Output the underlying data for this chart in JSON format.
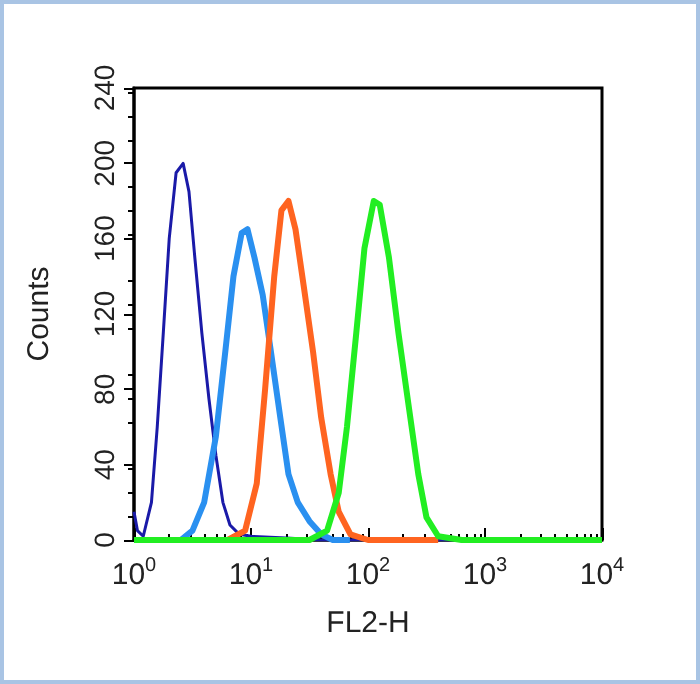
{
  "chart_data": {
    "type": "line",
    "xlabel": "FL2-H",
    "ylabel": "Counts",
    "log": "x",
    "grid": false,
    "marker": "none",
    "line_style": "solid",
    "xlim": [
      1,
      10000
    ],
    "xticks": [
      {
        "value": 1,
        "label": "10$^{0}$"
      },
      {
        "value": 10,
        "label": "10$^{1}$"
      },
      {
        "value": 100,
        "label": "10$^{2}$"
      },
      {
        "value": 1000,
        "label": "10$^{3}$"
      },
      {
        "value": 10000,
        "label": "10$^{4}$"
      }
    ],
    "ylim": [
      0,
      240
    ],
    "yticks": [
      0,
      40,
      80,
      120,
      160,
      200,
      240
    ],
    "series": [
      {
        "color": "#1a1aa8",
        "x": [
          1,
          1.07,
          1.2,
          1.41,
          1.58,
          1.78,
          2.0,
          2.29,
          2.63,
          2.95,
          3.31,
          3.8,
          4.37,
          5.01,
          5.75,
          6.61,
          7.94,
          10,
          20,
          40,
          10000
        ],
        "values": [
          15,
          5,
          2,
          20,
          60,
          110,
          160,
          195,
          200,
          185,
          150,
          110,
          75,
          45,
          20,
          8,
          3,
          2,
          1,
          0,
          0
        ]
      },
      {
        "color": "#2a90f0",
        "x": [
          1.8,
          2.51,
          3.16,
          3.98,
          5.01,
          6.03,
          7.08,
          8.32,
          9.33,
          10.7,
          12.6,
          14.8,
          17.8,
          20.9,
          25.1,
          31.6,
          39.8,
          50.1,
          70
        ],
        "values": [
          0,
          0,
          5,
          20,
          55,
          100,
          140,
          163,
          165,
          150,
          130,
          100,
          65,
          35,
          20,
          10,
          3,
          0,
          0
        ]
      },
      {
        "color": "#ff6420",
        "x": [
          3,
          6.31,
          8.91,
          11.2,
          13.2,
          15.8,
          18.2,
          20.9,
          24,
          28.2,
          33.9,
          39.8,
          47.9,
          56.2,
          70.8,
          100,
          398
        ],
        "values": [
          0,
          0,
          5,
          30,
          80,
          140,
          175,
          180,
          165,
          135,
          100,
          65,
          35,
          15,
          3,
          0,
          0
        ]
      },
      {
        "color": "#22ee22",
        "x": [
          1,
          31.6,
          44.7,
          56.2,
          66.1,
          79.4,
          93.3,
          112,
          126,
          151,
          182,
          224,
          269,
          316,
          398,
          631,
          10000
        ],
        "values": [
          0,
          0,
          5,
          25,
          60,
          110,
          155,
          180,
          178,
          150,
          110,
          70,
          35,
          12,
          2,
          0,
          0
        ]
      }
    ]
  }
}
